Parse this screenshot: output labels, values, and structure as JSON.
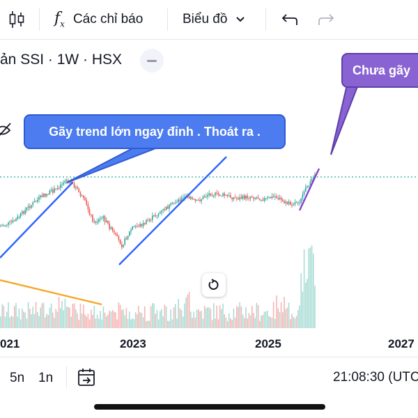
{
  "toolbar": {
    "indicators_label": "Các chỉ báo",
    "chart_type_label": "Biểu đồ"
  },
  "symbol": {
    "text": "ản SSI · 1W · HSX"
  },
  "annotations": {
    "left_callout": "Gãy trend lớn ngay đỉnh . Thoát ra .",
    "right_callout": "Chưa gãy"
  },
  "axis": {
    "years": [
      "021",
      "2023",
      "2025",
      "2027"
    ]
  },
  "bottom": {
    "timeframes": [
      "5n",
      "1n"
    ],
    "clock": "21:08:30 (UTC"
  },
  "colors": {
    "up": "#26a69a",
    "down": "#ef5350",
    "trendline": "#2962ff",
    "orange_line": "#f5a623",
    "purple_line": "#8a3fd1",
    "callout_blue": "#4c7cf0",
    "callout_purple": "#8a63d2",
    "dotted_level": "#26a69a"
  }
}
